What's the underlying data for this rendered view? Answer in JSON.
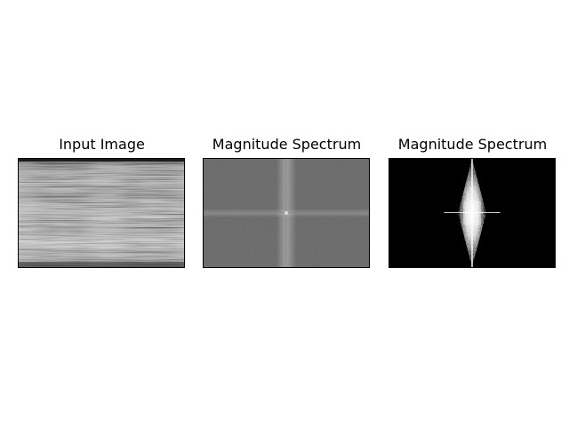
{
  "figure": {
    "background": "#ffffff",
    "panels": [
      {
        "title": "Input Image",
        "content": "grayscale-streaked-texture"
      },
      {
        "title": "Magnitude Spectrum",
        "content": "log-magnitude-fft-gray"
      },
      {
        "title": "Magnitude Spectrum",
        "content": "thresholded-fft-binary"
      }
    ]
  },
  "colors": {
    "border": "#000000",
    "spectrum_gray": "#545454",
    "binary_black": "#000000",
    "binary_white": "#ffffff"
  }
}
